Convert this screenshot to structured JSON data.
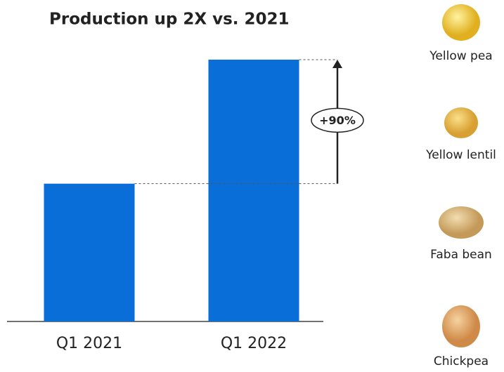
{
  "chart_data": {
    "type": "bar",
    "title": "Production up 2X vs. 2021",
    "categories": [
      "Q1 2021",
      "Q1 2022"
    ],
    "values": [
      100,
      190
    ],
    "color": "#0a6ed8",
    "annotation": "+90%"
  },
  "ingredients": [
    "Yellow pea",
    "Yellow lentil",
    "Faba bean",
    "Chickpea"
  ]
}
